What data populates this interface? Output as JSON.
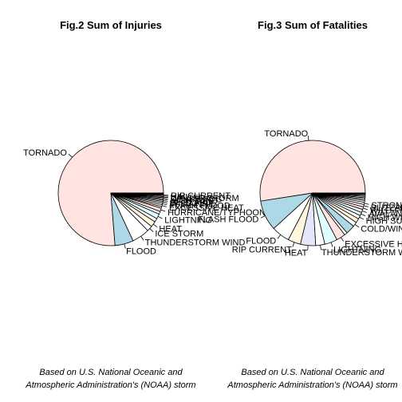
{
  "chart_data": [
    {
      "type": "pie",
      "title": "Fig.2 Sum of Injuries",
      "clockwise": false,
      "slices": [
        {
          "label": "TORNADO",
          "value": 91346,
          "color": "#FFE4E1"
        },
        {
          "label": "FLOOD",
          "value": 6789,
          "color": "#ADD8E6"
        },
        {
          "label": "THUNDERSTORM WIND",
          "value": 6529,
          "color": "#FFFFFF"
        },
        {
          "label": "ICE STORM",
          "value": 1975,
          "color": "#FFFFFF"
        },
        {
          "label": "HEAT",
          "value": 2100,
          "color": "#FFF8DC"
        },
        {
          "label": "",
          "value": 1361,
          "color": "#FFFFFF"
        },
        {
          "label": "LIGHTNING",
          "value": 1800,
          "color": "#E0FFFF"
        },
        {
          "label": "",
          "value": 1050,
          "color": "#FFFFFF"
        },
        {
          "label": "HURRICANE/TYPHOON",
          "value": 1275,
          "color": "#FFE4E1"
        },
        {
          "label": "",
          "value": 600,
          "color": "#FFFFFF"
        },
        {
          "label": "EXCESSIVE HEAT",
          "value": 700,
          "color": "#FFF8DC"
        },
        {
          "label": "FLASH FLOOD",
          "value": 650,
          "color": "#FFFFFF"
        },
        {
          "label": "WILD FIRE",
          "value": 550,
          "color": "#FFFFFF"
        },
        {
          "label": "BLIZZARD",
          "value": 500,
          "color": "#FFFFFF"
        },
        {
          "label": "HIGH WIND",
          "value": 450,
          "color": "#FFFFFF"
        },
        {
          "label": "DENSE FOG",
          "value": 420,
          "color": "#FFFFFF"
        },
        {
          "label": "WINTER STORM",
          "value": 400,
          "color": "#FFFFFF"
        },
        {
          "label": "HAIL",
          "value": 380,
          "color": "#FFFFFF"
        },
        {
          "label": "RIP CURRENT",
          "value": 300,
          "color": "#FFFFFF"
        },
        {
          "label": "",
          "value": 150,
          "color": "#FFFFFF"
        },
        {
          "label": "",
          "value": 120,
          "color": "#FFFFFF"
        },
        {
          "label": "",
          "value": 100,
          "color": "#FFFFFF"
        },
        {
          "label": "",
          "value": 80,
          "color": "#FFFFFF"
        },
        {
          "label": "",
          "value": 60,
          "color": "#FFFFFF"
        },
        {
          "label": "",
          "value": 50,
          "color": "#FFFFFF"
        },
        {
          "label": "",
          "value": 40,
          "color": "#FFFFFF"
        }
      ]
    },
    {
      "type": "pie",
      "title": "Fig.3 Sum of Fatalities",
      "clockwise": false,
      "slices": [
        {
          "label": "TORNADO",
          "value": 5633,
          "color": "#FFE4E1"
        },
        {
          "label": "FLASH FLOOD",
          "value": 1000,
          "color": "#ADD8E6"
        },
        {
          "label": "FLOOD",
          "value": 600,
          "color": "#FFFFFF"
        },
        {
          "label": "RIP CURRENT",
          "value": 420,
          "color": "#FFF8DC"
        },
        {
          "label": "HEAT",
          "value": 500,
          "color": "#E6E6FA"
        },
        {
          "label": "THUNDERSTORM WIND",
          "value": 300,
          "color": "#FFFFFF"
        },
        {
          "label": "LIGHTNING",
          "value": 420,
          "color": "#E0FFFF"
        },
        {
          "label": "EXCESSIVE HEAT",
          "value": 300,
          "color": "#FFE4E1"
        },
        {
          "label": "",
          "value": 100,
          "color": "#FFFFFF"
        },
        {
          "label": "",
          "value": 300,
          "color": "#ADD8E6"
        },
        {
          "label": "COLD/WIND CHILL",
          "value": 150,
          "color": "#FFFFFF"
        },
        {
          "label": "",
          "value": 140,
          "color": "#FFF8DC"
        },
        {
          "label": "HIGH SURF",
          "value": 120,
          "color": "#FFFFFF"
        },
        {
          "label": "HIGH WIND",
          "value": 110,
          "color": "#E0FFFF"
        },
        {
          "label": "AVALANCHE",
          "value": 100,
          "color": "#FFFFFF"
        },
        {
          "label": "WILD FIRE",
          "value": 90,
          "color": "#FFE4E1"
        },
        {
          "label": "BLIZZARD",
          "value": 80,
          "color": "#FFFFFF"
        },
        {
          "label": "STRONG WIND",
          "value": 70,
          "color": "#FFFFFF"
        },
        {
          "label": "",
          "value": 60,
          "color": "#FFFFFF"
        },
        {
          "label": "",
          "value": 50,
          "color": "#FFFFFF"
        },
        {
          "label": "",
          "value": 45,
          "color": "#FFFFFF"
        },
        {
          "label": "",
          "value": 40,
          "color": "#FFFFFF"
        },
        {
          "label": "",
          "value": 35,
          "color": "#FFFFFF"
        },
        {
          "label": "",
          "value": 30,
          "color": "#FFFFFF"
        },
        {
          "label": "",
          "value": 25,
          "color": "#FFFFFF"
        },
        {
          "label": "",
          "value": 20,
          "color": "#FFFFFF"
        }
      ]
    }
  ],
  "caption": {
    "line1": "Based on U.S. National Oceanic and",
    "line2": "Atmospheric Administration's (NOAA) storm"
  }
}
